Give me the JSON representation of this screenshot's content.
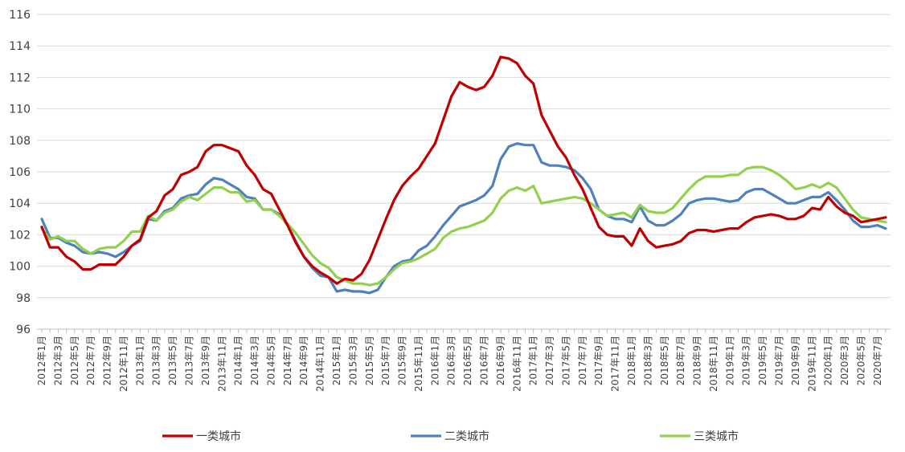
{
  "chart_data": {
    "type": "line",
    "title": "",
    "xlabel": "",
    "ylabel": "",
    "ylim": [
      96,
      116
    ],
    "yticks": [
      96,
      98,
      100,
      102,
      104,
      106,
      108,
      110,
      112,
      114,
      116
    ],
    "grid": "horizontal",
    "legend_position": "bottom",
    "x": [
      "2012年1月",
      "2012年2月",
      "2012年3月",
      "2012年4月",
      "2012年5月",
      "2012年6月",
      "2012年7月",
      "2012年8月",
      "2012年9月",
      "2012年10月",
      "2012年11月",
      "2012年12月",
      "2013年1月",
      "2013年2月",
      "2013年3月",
      "2013年4月",
      "2013年5月",
      "2013年6月",
      "2013年7月",
      "2013年8月",
      "2013年9月",
      "2013年10月",
      "2013年11月",
      "2013年12月",
      "2014年1月",
      "2014年2月",
      "2014年3月",
      "2014年4月",
      "2014年5月",
      "2014年6月",
      "2014年7月",
      "2014年8月",
      "2014年9月",
      "2014年10月",
      "2014年11月",
      "2014年12月",
      "2015年1月",
      "2015年2月",
      "2015年3月",
      "2015年4月",
      "2015年5月",
      "2015年6月",
      "2015年7月",
      "2015年8月",
      "2015年9月",
      "2015年10月",
      "2015年11月",
      "2015年12月",
      "2016年1月",
      "2016年2月",
      "2016年3月",
      "2016年4月",
      "2016年5月",
      "2016年6月",
      "2016年7月",
      "2016年8月",
      "2016年9月",
      "2016年10月",
      "2016年11月",
      "2016年12月",
      "2017年1月",
      "2017年2月",
      "2017年3月",
      "2017年4月",
      "2017年5月",
      "2017年6月",
      "2017年7月",
      "2017年8月",
      "2017年9月",
      "2017年10月",
      "2017年11月",
      "2017年12月",
      "2018年1月",
      "2018年2月",
      "2018年3月",
      "2018年4月",
      "2018年5月",
      "2018年6月",
      "2018年7月",
      "2018年8月",
      "2018年9月",
      "2018年10月",
      "2018年11月",
      "2018年12月",
      "2019年1月",
      "2019年2月",
      "2019年3月",
      "2019年4月",
      "2019年5月",
      "2019年6月",
      "2019年7月",
      "2019年8月",
      "2019年9月",
      "2019年10月",
      "2019年11月",
      "2019年12月",
      "2020年1月",
      "2020年2月",
      "2020年3月",
      "2020年4月",
      "2020年5月",
      "2020年6月",
      "2020年7月",
      "2020年8月"
    ],
    "xtick_labels": [
      "2012年1月",
      "2012年3月",
      "2012年5月",
      "2012年7月",
      "2012年9月",
      "2012年11月",
      "2013年1月",
      "2013年3月",
      "2013年5月",
      "2013年7月",
      "2013年9月",
      "2013年11月",
      "2014年1月",
      "2014年3月",
      "2014年5月",
      "2014年7月",
      "2014年9月",
      "2014年11月",
      "2015年1月",
      "2015年3月",
      "2015年5月",
      "2015年7月",
      "2015年9月",
      "2015年11月",
      "2016年1月",
      "2016年3月",
      "2016年5月",
      "2016年7月",
      "2016年9月",
      "2016年11月",
      "2017年1月",
      "2017年3月",
      "2017年5月",
      "2017年7月",
      "2017年9月",
      "2017年11月",
      "2018年1月",
      "2018年3月",
      "2018年5月",
      "2018年7月",
      "2018年9月",
      "2018年11月",
      "2019年1月",
      "2019年3月",
      "2019年5月",
      "2019年7月",
      "2019年9月",
      "2019年11月",
      "2020年1月",
      "2020年3月",
      "2020年5月",
      "2020年7月"
    ],
    "series": [
      {
        "name": "一类城市",
        "color": "#C00000",
        "values": [
          102.5,
          101.2,
          101.2,
          100.6,
          100.3,
          99.8,
          99.8,
          100.1,
          100.1,
          100.1,
          100.6,
          101.3,
          101.7,
          103.1,
          103.5,
          104.5,
          104.9,
          105.8,
          106.0,
          106.3,
          107.3,
          107.7,
          107.7,
          107.5,
          107.3,
          106.4,
          105.8,
          104.9,
          104.6,
          103.6,
          102.6,
          101.5,
          100.6,
          100.0,
          99.6,
          99.3,
          98.9,
          99.2,
          99.1,
          99.5,
          100.4,
          101.7,
          103.0,
          104.2,
          105.1,
          105.7,
          106.2,
          107.0,
          107.8,
          109.3,
          110.8,
          111.7,
          111.4,
          111.2,
          111.4,
          112.1,
          113.3,
          113.2,
          112.9,
          112.1,
          111.6,
          109.6,
          108.6,
          107.6,
          106.9,
          105.8,
          104.9,
          103.7,
          102.5,
          102.0,
          101.9,
          101.9,
          101.3,
          102.4,
          101.6,
          101.2,
          101.3,
          101.4,
          101.6,
          102.1,
          102.3,
          102.3,
          102.2,
          102.3,
          102.4,
          102.4,
          102.8,
          103.1,
          103.2,
          103.3,
          103.2,
          103.0,
          103.0,
          103.2,
          103.7,
          103.6,
          104.4,
          103.8,
          103.4,
          103.2,
          102.8,
          102.9,
          103.0,
          103.1
        ]
      },
      {
        "name": "二类城市",
        "color": "#4F81BD",
        "values": [
          103.0,
          101.8,
          101.8,
          101.5,
          101.3,
          100.9,
          100.8,
          100.9,
          100.8,
          100.6,
          100.9,
          101.3,
          101.6,
          103.0,
          102.9,
          103.5,
          103.7,
          104.3,
          104.5,
          104.6,
          105.2,
          105.6,
          105.5,
          105.2,
          104.9,
          104.4,
          104.3,
          103.6,
          103.6,
          103.3,
          102.6,
          101.6,
          100.6,
          99.9,
          99.4,
          99.3,
          98.4,
          98.5,
          98.4,
          98.4,
          98.3,
          98.5,
          99.3,
          100.0,
          100.3,
          100.4,
          101.0,
          101.3,
          101.9,
          102.6,
          103.2,
          103.8,
          104.0,
          104.2,
          104.5,
          105.1,
          106.8,
          107.6,
          107.8,
          107.7,
          107.7,
          106.6,
          106.4,
          106.4,
          106.3,
          106.1,
          105.6,
          104.9,
          103.6,
          103.2,
          103.0,
          103.0,
          102.8,
          103.8,
          102.9,
          102.6,
          102.6,
          102.9,
          103.3,
          104.0,
          104.2,
          104.3,
          104.3,
          104.2,
          104.1,
          104.2,
          104.7,
          104.9,
          104.9,
          104.6,
          104.3,
          104.0,
          104.0,
          104.2,
          104.4,
          104.4,
          104.7,
          104.2,
          103.6,
          102.9,
          102.5,
          102.5,
          102.6,
          102.4
        ]
      },
      {
        "name": "三类城市",
        "color": "#92D050",
        "values": [
          102.4,
          101.7,
          101.9,
          101.6,
          101.6,
          101.1,
          100.8,
          101.1,
          101.2,
          101.2,
          101.6,
          102.2,
          102.2,
          103.2,
          102.9,
          103.4,
          103.6,
          104.1,
          104.4,
          104.2,
          104.6,
          105.0,
          105.0,
          104.7,
          104.7,
          104.1,
          104.2,
          103.6,
          103.6,
          103.2,
          102.7,
          102.1,
          101.4,
          100.7,
          100.2,
          99.9,
          99.3,
          99.1,
          98.9,
          98.9,
          98.8,
          98.9,
          99.3,
          99.8,
          100.2,
          100.3,
          100.5,
          100.8,
          101.1,
          101.8,
          102.2,
          102.4,
          102.5,
          102.7,
          102.9,
          103.4,
          104.3,
          104.8,
          105.0,
          104.8,
          105.1,
          104.0,
          104.1,
          104.2,
          104.3,
          104.4,
          104.3,
          104.0,
          103.6,
          103.2,
          103.3,
          103.4,
          103.1,
          103.9,
          103.5,
          103.4,
          103.4,
          103.7,
          104.3,
          104.9,
          105.4,
          105.7,
          105.7,
          105.7,
          105.8,
          105.8,
          106.2,
          106.3,
          106.3,
          106.1,
          105.8,
          105.4,
          104.9,
          105.0,
          105.2,
          105.0,
          105.3,
          105.0,
          104.3,
          103.6,
          103.1,
          103.0,
          102.9,
          102.8
        ]
      }
    ]
  }
}
